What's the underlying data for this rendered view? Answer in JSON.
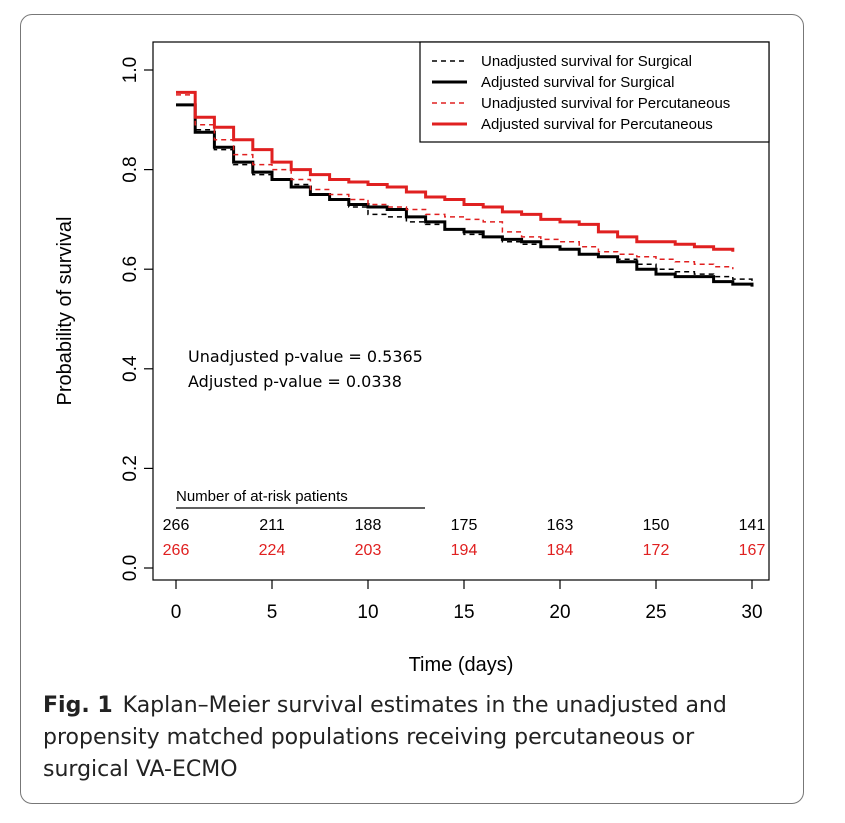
{
  "colors": {
    "surgical": "#000000",
    "percutaneous": "#e02020",
    "axis": "#000000"
  },
  "caption": {
    "label": "Fig. 1",
    "text": "Kaplan–Meier survival estimates in the unadjusted and propensity matched populations receiving percutaneous or surgical VA-ECMO"
  },
  "annotations": {
    "unadjusted_p": "Unadjusted p-value = 0.5365",
    "adjusted_p": "Adjusted p-value = 0.0338"
  },
  "at_risk": {
    "title": "Number of at-risk patients",
    "times": [
      0,
      5,
      10,
      15,
      20,
      25,
      30
    ],
    "surgical": [
      "266",
      "211",
      "188",
      "175",
      "163",
      "150",
      "141"
    ],
    "percutaneous": [
      "266",
      "224",
      "203",
      "194",
      "184",
      "172",
      "167"
    ]
  },
  "chart_data": {
    "type": "line",
    "title": "",
    "xlabel": "Time (days)",
    "ylabel": "Probability of survival",
    "xlim": [
      0,
      30
    ],
    "ylim": [
      0,
      1
    ],
    "xticks": [
      0,
      5,
      10,
      15,
      20,
      25,
      30
    ],
    "yticks": [
      "0.0",
      "0.2",
      "0.4",
      "0.6",
      "0.8",
      "1.0"
    ],
    "grid": false,
    "legend": "top-right",
    "series": [
      {
        "name": "Unadjusted survival for Surgical",
        "color": "#000000",
        "dash": true,
        "width": 1.5,
        "x": [
          0,
          1,
          2,
          3,
          4,
          5,
          6,
          7,
          8,
          9,
          10,
          11,
          12,
          13,
          14,
          15,
          16,
          17,
          18,
          19,
          20,
          21,
          22,
          23,
          24,
          25,
          26,
          27,
          28,
          29,
          30
        ],
        "y": [
          0.93,
          0.88,
          0.84,
          0.81,
          0.79,
          0.78,
          0.77,
          0.75,
          0.74,
          0.725,
          0.71,
          0.705,
          0.695,
          0.69,
          0.68,
          0.67,
          0.665,
          0.655,
          0.65,
          0.645,
          0.64,
          0.63,
          0.625,
          0.62,
          0.61,
          0.6,
          0.595,
          0.59,
          0.585,
          0.58,
          0.575
        ]
      },
      {
        "name": "Adjusted survival for Surgical",
        "color": "#000000",
        "dash": false,
        "width": 3,
        "x": [
          0,
          1,
          2,
          3,
          4,
          5,
          6,
          7,
          8,
          9,
          10,
          11,
          12,
          13,
          14,
          15,
          16,
          17,
          18,
          19,
          20,
          21,
          22,
          23,
          24,
          25,
          26,
          27,
          28,
          29,
          30
        ],
        "y": [
          0.93,
          0.875,
          0.845,
          0.815,
          0.795,
          0.78,
          0.765,
          0.75,
          0.74,
          0.73,
          0.725,
          0.72,
          0.705,
          0.695,
          0.68,
          0.675,
          0.665,
          0.66,
          0.655,
          0.645,
          0.64,
          0.63,
          0.625,
          0.615,
          0.6,
          0.59,
          0.585,
          0.585,
          0.575,
          0.57,
          0.565
        ]
      },
      {
        "name": "Unadjusted survival for Percutaneous",
        "color": "#e02020",
        "dash": true,
        "width": 1.5,
        "x": [
          0,
          1,
          2,
          3,
          4,
          5,
          6,
          7,
          8,
          9,
          10,
          11,
          12,
          13,
          14,
          15,
          16,
          17,
          18,
          19,
          20,
          21,
          22,
          23,
          24,
          25,
          26,
          27,
          28,
          29
        ],
        "y": [
          0.95,
          0.89,
          0.86,
          0.83,
          0.81,
          0.8,
          0.78,
          0.76,
          0.75,
          0.74,
          0.73,
          0.725,
          0.72,
          0.71,
          0.705,
          0.7,
          0.695,
          0.675,
          0.665,
          0.66,
          0.655,
          0.645,
          0.635,
          0.63,
          0.625,
          0.62,
          0.615,
          0.61,
          0.605,
          0.6
        ]
      },
      {
        "name": "Adjusted survival for Percutaneous",
        "color": "#e02020",
        "dash": false,
        "width": 3,
        "x": [
          0,
          1,
          2,
          3,
          4,
          5,
          6,
          7,
          8,
          9,
          10,
          11,
          12,
          13,
          14,
          15,
          16,
          17,
          18,
          19,
          20,
          21,
          22,
          23,
          24,
          25,
          26,
          27,
          28,
          29
        ],
        "y": [
          0.955,
          0.905,
          0.885,
          0.86,
          0.84,
          0.815,
          0.8,
          0.79,
          0.78,
          0.775,
          0.77,
          0.765,
          0.755,
          0.745,
          0.74,
          0.73,
          0.725,
          0.715,
          0.71,
          0.7,
          0.695,
          0.69,
          0.675,
          0.665,
          0.655,
          0.655,
          0.65,
          0.645,
          0.64,
          0.635
        ]
      }
    ]
  }
}
